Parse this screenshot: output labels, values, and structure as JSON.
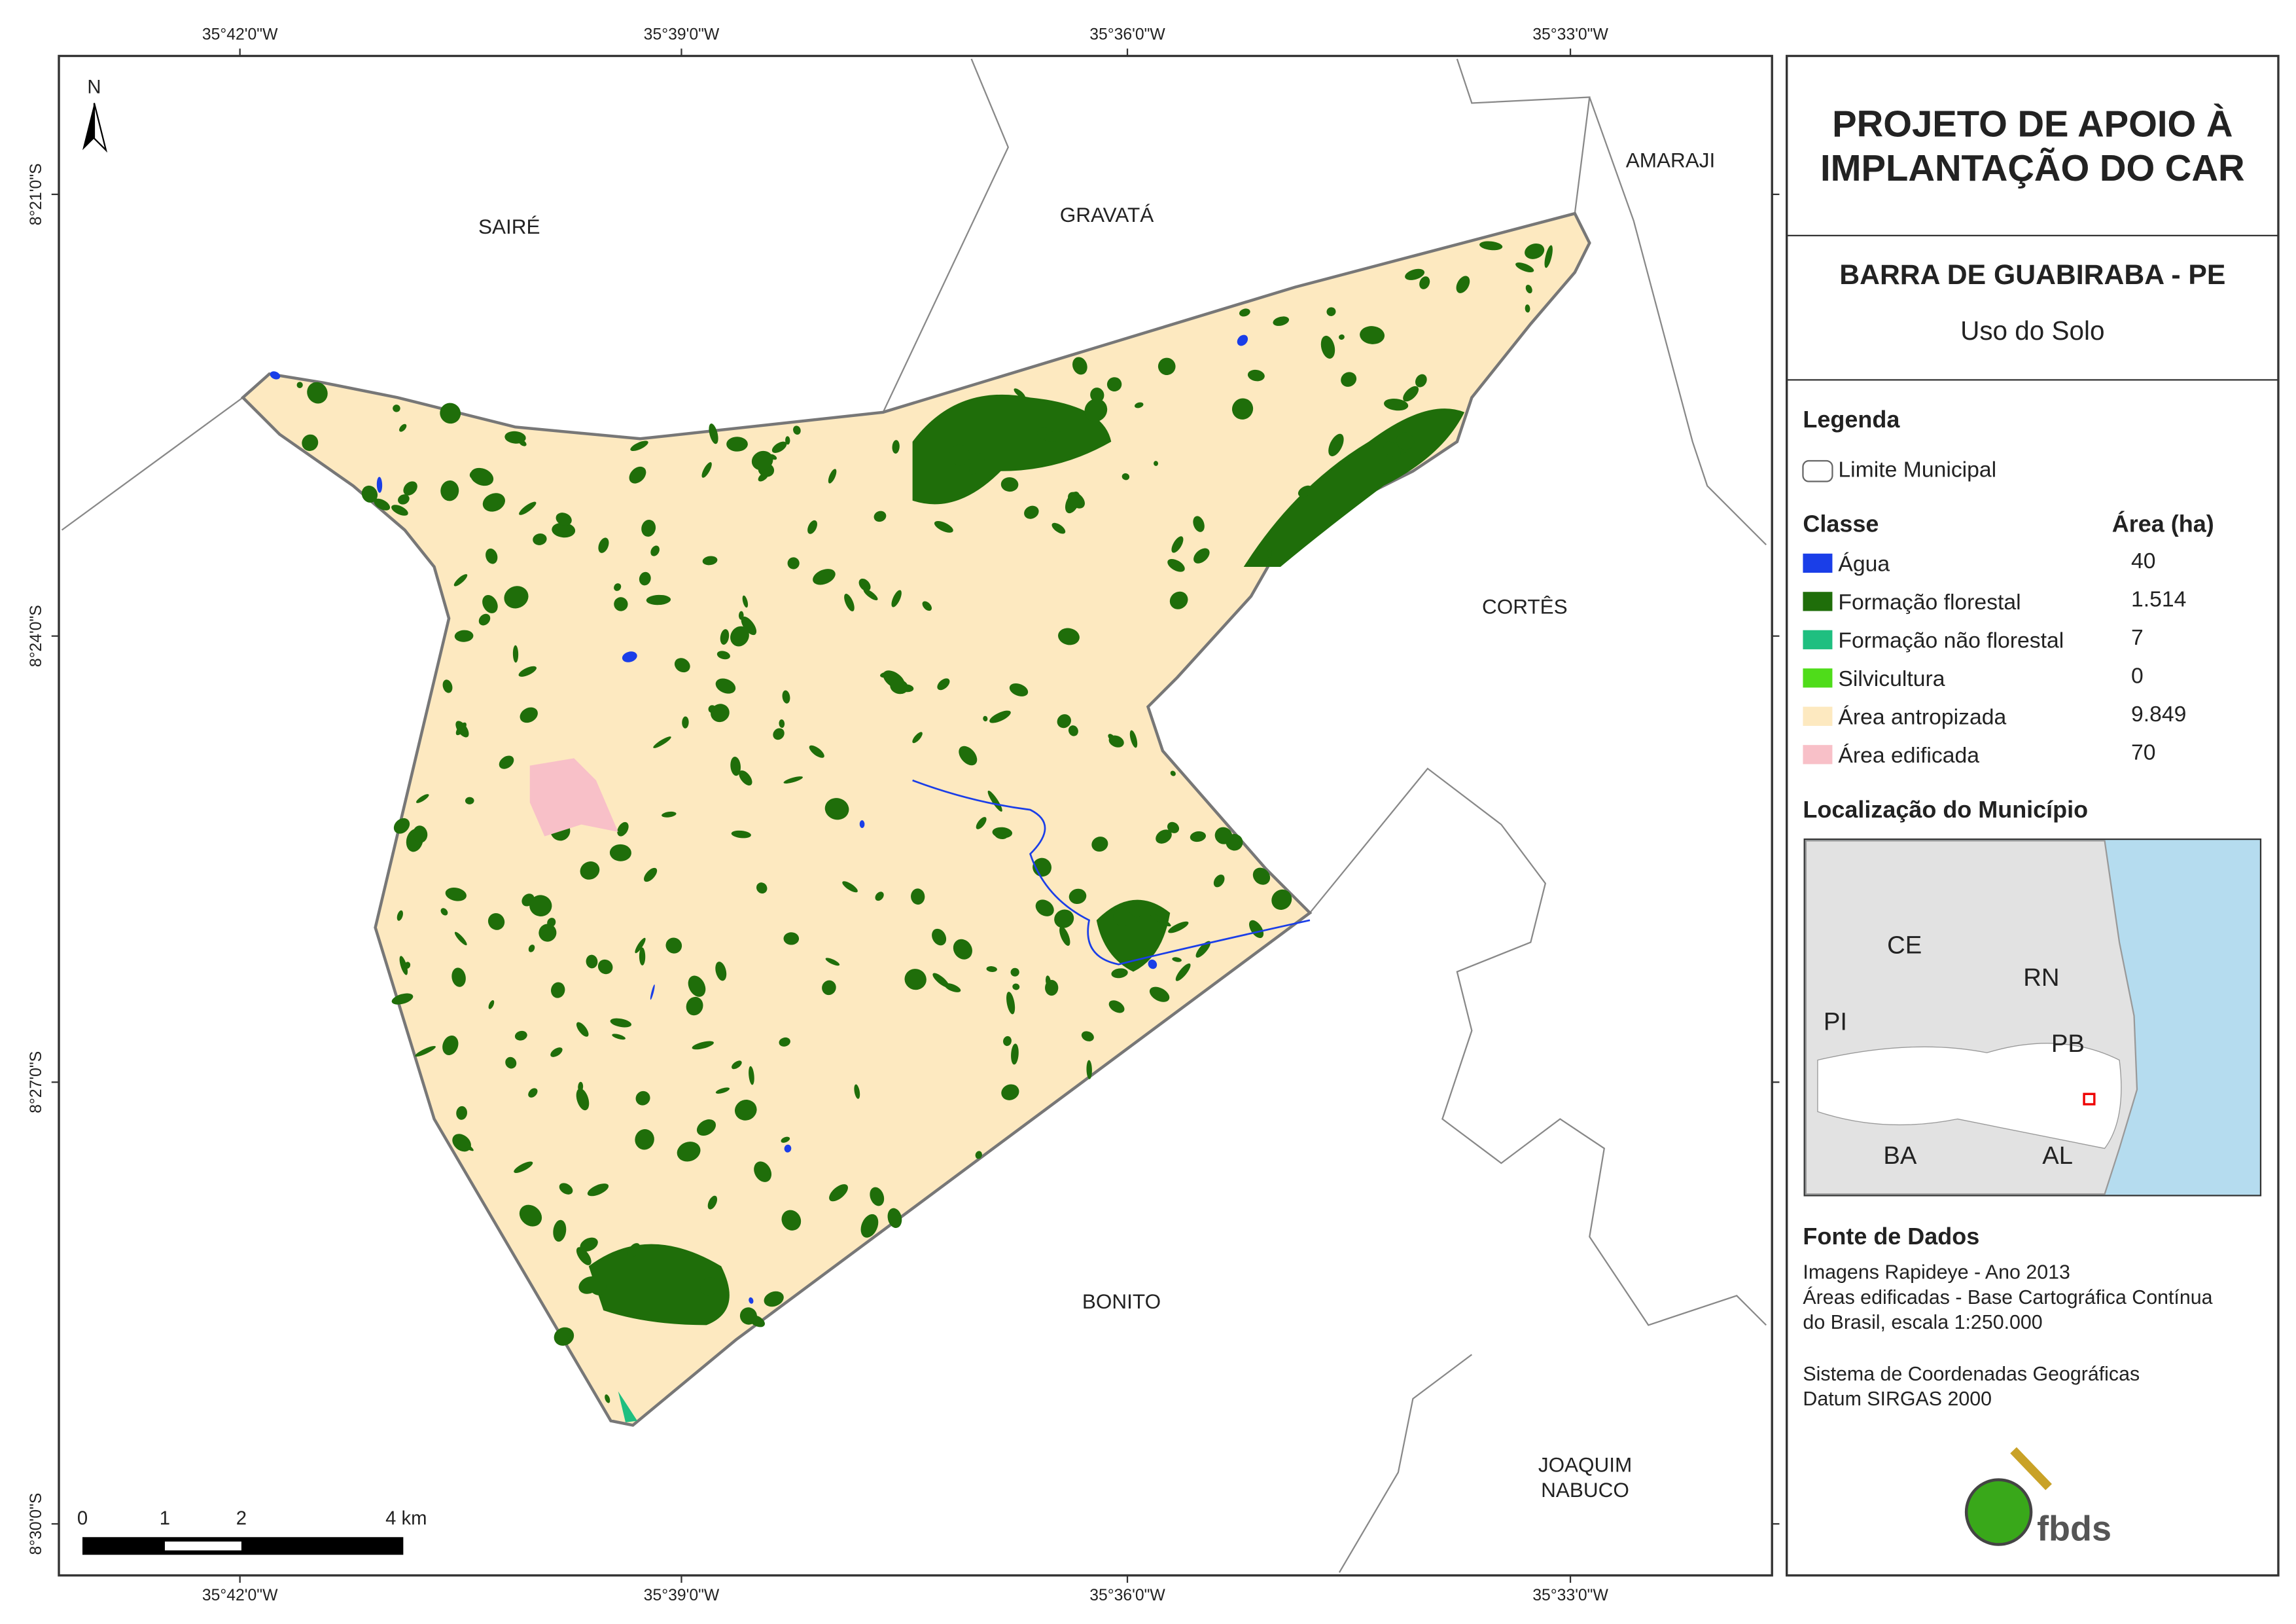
{
  "map": {
    "title_lines": [
      "PROJETO DE APOIO À",
      "IMPLANTAÇÃO DO CAR"
    ],
    "subtitle": "BARRA DE GUABIRABA - PE",
    "theme": "Uso do Solo",
    "north": "N",
    "longitude_labels": [
      "35°42'0\"W",
      "35°39'0\"W",
      "35°36'0\"W",
      "35°33'0\"W"
    ],
    "latitude_labels": [
      "8°21'0\"S",
      "8°24'0\"S",
      "8°27'0\"S",
      "8°30'0\"S"
    ],
    "municipalities": [
      {
        "lines": [
          "SAIRÉ"
        ]
      },
      {
        "lines": [
          "GRAVATÁ"
        ]
      },
      {
        "lines": [
          "AMARAJI"
        ]
      },
      {
        "lines": [
          "CORTÊS"
        ]
      },
      {
        "lines": [
          "BONITO"
        ]
      },
      {
        "lines": [
          "JOAQUIM",
          "NABUCO"
        ]
      }
    ],
    "scale_bar": [
      "0",
      "1",
      "2",
      "4 km"
    ]
  },
  "legend": {
    "title": "Legenda",
    "boundary": "Limite Municipal",
    "class_header": "Classe",
    "area_header": "Área (ha)",
    "classes": [
      {
        "name": "Água",
        "area": "40",
        "color": "#1a3ee8"
      },
      {
        "name": "Formação florestal",
        "area": "1.514",
        "color": "#1f6e0a"
      },
      {
        "name": "Formação não florestal",
        "area": "7",
        "color": "#1fbf80"
      },
      {
        "name": "Silvicultura",
        "area": "0",
        "color": "#4fdc1a"
      },
      {
        "name": "Área antropizada",
        "area": "9.849",
        "color": "#fde9c0"
      },
      {
        "name": "Área edificada",
        "area": "70",
        "color": "#f8c0c8"
      }
    ]
  },
  "location": {
    "title": "Localização do Município",
    "states": [
      "CE",
      "RN",
      "PI",
      "PB",
      "BA",
      "AL"
    ]
  },
  "sources": {
    "title": "Fonte de Dados",
    "lines": [
      "Imagens Rapideye - Ano 2013",
      "Áreas edificadas - Base Cartográfica Contínua",
      "do Brasil, escala 1:250.000",
      "Sistema de Coordenadas Geográficas",
      "Datum SIRGAS 2000"
    ]
  },
  "logo": "fbds"
}
